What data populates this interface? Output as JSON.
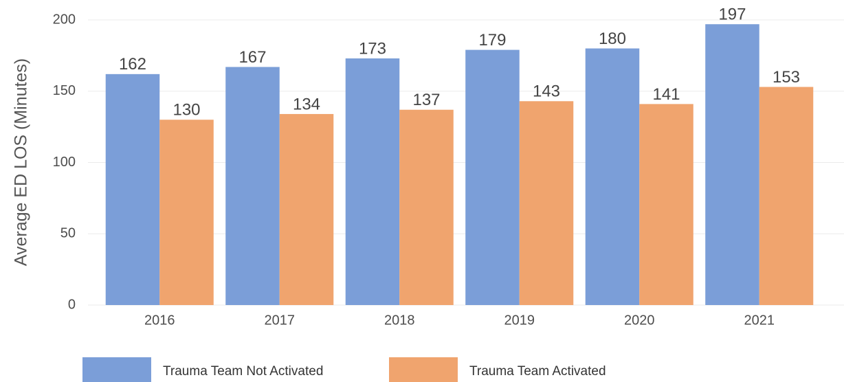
{
  "chart_data": {
    "type": "bar",
    "y_label": "Average ED LOS (Minutes)",
    "categories": [
      "2016",
      "2017",
      "2018",
      "2019",
      "2020",
      "2021"
    ],
    "series": [
      {
        "name": "Trauma Team Not Activated",
        "color": "#7b9ed8",
        "values": [
          162,
          167,
          173,
          179,
          180,
          197
        ]
      },
      {
        "name": "Trauma Team Activated",
        "color": "#f0a46e",
        "values": [
          130,
          134,
          137,
          143,
          141,
          153
        ]
      }
    ],
    "ylim": [
      0,
      200
    ],
    "yticks": [
      0,
      50,
      100,
      150,
      200
    ],
    "grid": true,
    "legend": "bottom"
  }
}
